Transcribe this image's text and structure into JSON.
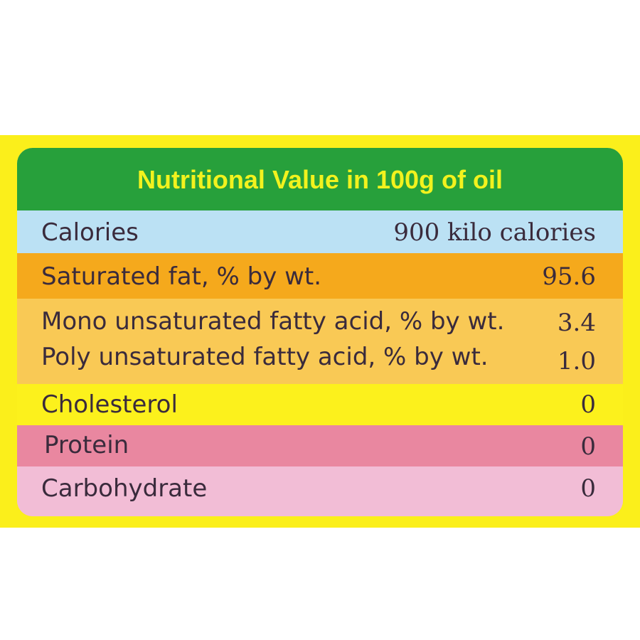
{
  "title": "Nutritional Value in 100g of oil",
  "rows": {
    "calories": {
      "label": "Calories",
      "value": "900 kilo calories"
    },
    "saturated_fat": {
      "label": "Saturated fat, % by wt.",
      "value": "95.6"
    },
    "mono": {
      "label": "Mono unsaturated fatty acid, % by wt.",
      "value": "3.4"
    },
    "poly": {
      "label": "Poly unsaturated fatty acid, % by wt.",
      "value": "1.0"
    },
    "cholesterol": {
      "label": "Cholesterol",
      "value": "0"
    },
    "protein": {
      "label": "Protein",
      "value": "0"
    },
    "carbohydrate": {
      "label": "Carbohydrate",
      "value": "0"
    }
  },
  "colors": {
    "border": "#fbef1b",
    "title_bg": "#27a03b",
    "title_text": "#f2f21e",
    "calories_bg": "#bbe1f4",
    "saturated_fat_bg": "#f5a91c",
    "unsaturated_bg": "#f9c955",
    "cholesterol_bg": "#fcf11c",
    "protein_bg": "#e987a0",
    "carbohydrate_bg": "#f2bdd6"
  }
}
